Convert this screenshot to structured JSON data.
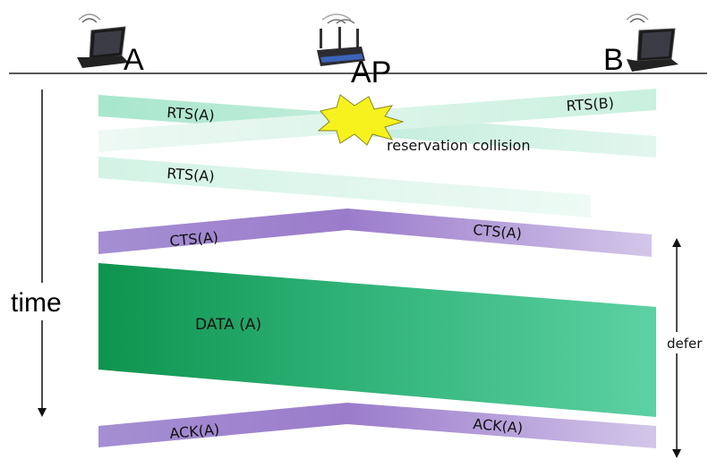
{
  "nodes": {
    "a": "A",
    "ap": "AP",
    "b": "B"
  },
  "time_label": "time",
  "messages": {
    "rts_a_1": "RTS(A)",
    "rts_b": "RTS(B)",
    "collision": "reservation collision",
    "rts_a_2": "RTS(A)",
    "cts_a_left": "CTS(A)",
    "cts_a_right": "CTS(A)",
    "data_a": "DATA (A)",
    "ack_a_left": "ACK(A)",
    "ack_a_right": "ACK(A)"
  },
  "defer_label": "defer",
  "icons": {
    "node_a": "laptop-wifi-icon",
    "node_ap": "wireless-router-icon",
    "node_b": "laptop-wifi-icon",
    "collision": "explosion-icon"
  },
  "colors": {
    "rts": "#b6ecd6",
    "cts_ack": "#9d82cc",
    "data_dark": "#10964f",
    "data_light": "#58cfa0",
    "collision_fill": "#f7f21e"
  }
}
